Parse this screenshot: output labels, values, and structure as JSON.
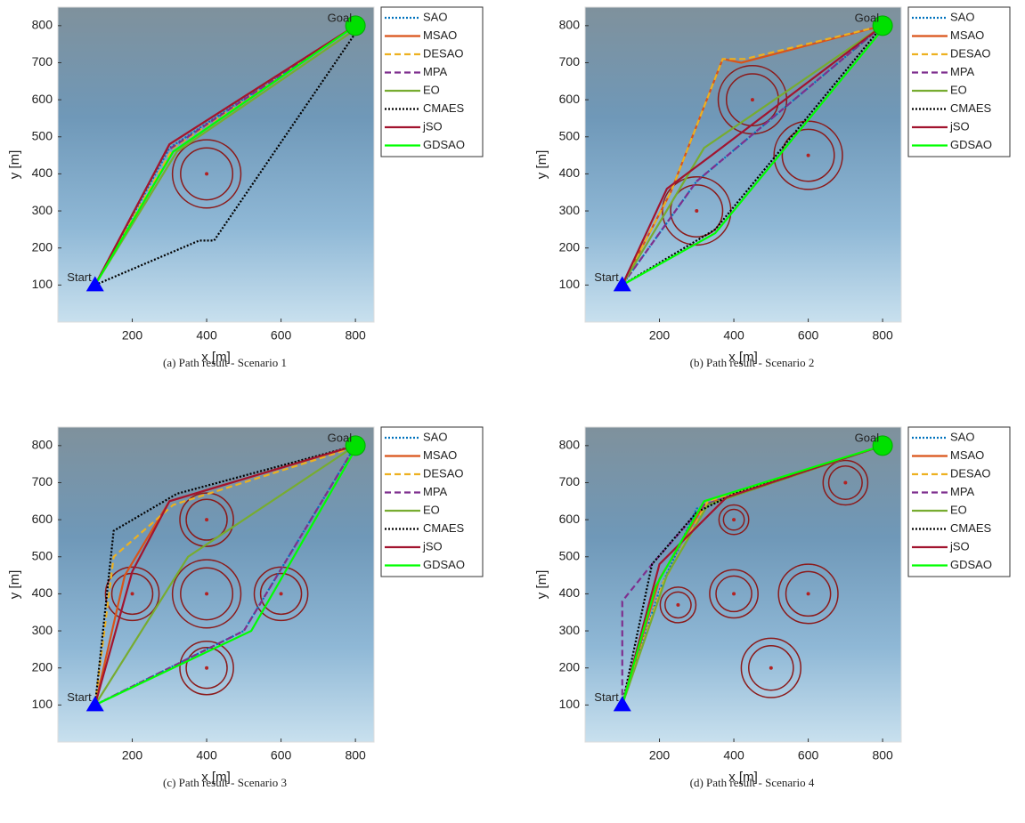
{
  "chart_data": [
    {
      "type": "line",
      "caption": "(a)  Path result - Scenario 1",
      "xlabel": "x [m]",
      "ylabel": "y [m]",
      "xlim": [
        0,
        850
      ],
      "ylim": [
        0,
        850
      ],
      "xticks": [
        200,
        400,
        600,
        800
      ],
      "yticks": [
        100,
        200,
        300,
        400,
        500,
        600,
        700,
        800
      ],
      "start": {
        "label": "Start",
        "x": 100,
        "y": 100
      },
      "goal": {
        "label": "Goal",
        "x": 800,
        "y": 800
      },
      "obstacles": [
        {
          "x": 400,
          "y": 400,
          "radii": [
            70,
            92
          ]
        }
      ],
      "series": [
        {
          "name": "SAO",
          "color": "#0072bd",
          "style": "dotted",
          "x": [
            100,
            300,
            800
          ],
          "y": [
            100,
            470,
            800
          ]
        },
        {
          "name": "MSAO",
          "color": "#d95319",
          "style": "solid",
          "x": [
            100,
            300,
            800
          ],
          "y": [
            100,
            480,
            800
          ]
        },
        {
          "name": "DESAO",
          "color": "#edb120",
          "style": "dashed",
          "x": [
            100,
            310,
            800
          ],
          "y": [
            100,
            470,
            800
          ]
        },
        {
          "name": "MPA",
          "color": "#7e2f8e",
          "style": "dashed",
          "x": [
            100,
            290,
            800
          ],
          "y": [
            100,
            460,
            800
          ]
        },
        {
          "name": "EO",
          "color": "#77ac30",
          "style": "solid",
          "x": [
            100,
            320,
            800
          ],
          "y": [
            100,
            460,
            790
          ]
        },
        {
          "name": "CMAES",
          "color": "#000000",
          "style": "dotted",
          "x": [
            100,
            380,
            420,
            800
          ],
          "y": [
            100,
            220,
            220,
            780
          ]
        },
        {
          "name": "jSO",
          "color": "#a2142f",
          "style": "solid",
          "x": [
            100,
            300,
            800
          ],
          "y": [
            100,
            480,
            800
          ]
        },
        {
          "name": "GDSAO",
          "color": "#00ff00",
          "style": "solid",
          "x": [
            100,
            310,
            800
          ],
          "y": [
            100,
            460,
            800
          ]
        }
      ]
    },
    {
      "type": "line",
      "caption": "(b)  Path result - Scenario 2",
      "xlabel": "x [m]",
      "ylabel": "y [m]",
      "xlim": [
        0,
        850
      ],
      "ylim": [
        0,
        850
      ],
      "xticks": [
        200,
        400,
        600,
        800
      ],
      "yticks": [
        100,
        200,
        300,
        400,
        500,
        600,
        700,
        800
      ],
      "start": {
        "label": "Start",
        "x": 100,
        "y": 100
      },
      "goal": {
        "label": "Goal",
        "x": 800,
        "y": 800
      },
      "obstacles": [
        {
          "x": 450,
          "y": 600,
          "radii": [
            70,
            92
          ]
        },
        {
          "x": 300,
          "y": 300,
          "radii": [
            70,
            92
          ]
        },
        {
          "x": 600,
          "y": 450,
          "radii": [
            70,
            92
          ]
        }
      ],
      "series": [
        {
          "name": "SAO",
          "color": "#0072bd",
          "style": "dotted",
          "x": [
            100,
            300,
            800
          ],
          "y": [
            100,
            380,
            800
          ]
        },
        {
          "name": "MSAO",
          "color": "#d95319",
          "style": "solid",
          "x": [
            100,
            230,
            370,
            420,
            800
          ],
          "y": [
            100,
            350,
            710,
            700,
            800
          ]
        },
        {
          "name": "DESAO",
          "color": "#edb120",
          "style": "dashed",
          "x": [
            100,
            230,
            370,
            430,
            800
          ],
          "y": [
            100,
            350,
            710,
            710,
            800
          ]
        },
        {
          "name": "MPA",
          "color": "#7e2f8e",
          "style": "dashed",
          "x": [
            100,
            300,
            800
          ],
          "y": [
            100,
            380,
            800
          ]
        },
        {
          "name": "EO",
          "color": "#77ac30",
          "style": "solid",
          "x": [
            100,
            320,
            800
          ],
          "y": [
            100,
            470,
            800
          ]
        },
        {
          "name": "CMAES",
          "color": "#000000",
          "style": "dotted",
          "x": [
            100,
            350,
            800
          ],
          "y": [
            100,
            250,
            800
          ]
        },
        {
          "name": "jSO",
          "color": "#a2142f",
          "style": "solid",
          "x": [
            100,
            220,
            340,
            800
          ],
          "y": [
            100,
            360,
            450,
            800
          ]
        },
        {
          "name": "GDSAO",
          "color": "#00ff00",
          "style": "solid",
          "x": [
            100,
            350,
            800
          ],
          "y": [
            100,
            240,
            790
          ]
        }
      ]
    },
    {
      "type": "line",
      "caption": "(c)  Path result - Scenario 3",
      "xlabel": "x [m]",
      "ylabel": "y [m]",
      "xlim": [
        0,
        850
      ],
      "ylim": [
        0,
        850
      ],
      "xticks": [
        200,
        400,
        600,
        800
      ],
      "yticks": [
        100,
        200,
        300,
        400,
        500,
        600,
        700,
        800
      ],
      "start": {
        "label": "Start",
        "x": 100,
        "y": 100
      },
      "goal": {
        "label": "Goal",
        "x": 800,
        "y": 800
      },
      "obstacles": [
        {
          "x": 200,
          "y": 400,
          "radii": [
            55,
            72
          ]
        },
        {
          "x": 400,
          "y": 400,
          "radii": [
            70,
            92
          ]
        },
        {
          "x": 600,
          "y": 400,
          "radii": [
            55,
            72
          ]
        },
        {
          "x": 400,
          "y": 600,
          "radii": [
            55,
            72
          ]
        },
        {
          "x": 400,
          "y": 200,
          "radii": [
            55,
            72
          ]
        }
      ],
      "series": [
        {
          "name": "SAO",
          "color": "#0072bd",
          "style": "dotted",
          "x": [
            100,
            500,
            800
          ],
          "y": [
            100,
            300,
            800
          ]
        },
        {
          "name": "MSAO",
          "color": "#d95319",
          "style": "solid",
          "x": [
            100,
            180,
            300,
            800
          ],
          "y": [
            100,
            450,
            650,
            800
          ]
        },
        {
          "name": "DESAO",
          "color": "#edb120",
          "style": "dashed",
          "x": [
            100,
            150,
            310,
            750,
            800
          ],
          "y": [
            100,
            500,
            640,
            780,
            800
          ]
        },
        {
          "name": "MPA",
          "color": "#7e2f8e",
          "style": "dashed",
          "x": [
            100,
            500,
            800
          ],
          "y": [
            100,
            300,
            800
          ]
        },
        {
          "name": "EO",
          "color": "#77ac30",
          "style": "solid",
          "x": [
            100,
            350,
            800
          ],
          "y": [
            100,
            500,
            800
          ]
        },
        {
          "name": "CMAES",
          "color": "#000000",
          "style": "dotted",
          "x": [
            100,
            150,
            320,
            800
          ],
          "y": [
            100,
            570,
            670,
            800
          ]
        },
        {
          "name": "jSO",
          "color": "#a2142f",
          "style": "solid",
          "x": [
            100,
            200,
            300,
            800
          ],
          "y": [
            100,
            460,
            650,
            800
          ]
        },
        {
          "name": "GDSAO",
          "color": "#00ff00",
          "style": "solid",
          "x": [
            100,
            520,
            800
          ],
          "y": [
            100,
            300,
            790
          ]
        }
      ]
    },
    {
      "type": "line",
      "caption": "(d)  Path result - Scenario 4",
      "xlabel": "x [m]",
      "ylabel": "y [m]",
      "xlim": [
        0,
        850
      ],
      "ylim": [
        0,
        850
      ],
      "xticks": [
        200,
        400,
        600,
        800
      ],
      "yticks": [
        100,
        200,
        300,
        400,
        500,
        600,
        700,
        800
      ],
      "start": {
        "label": "Start",
        "x": 100,
        "y": 100
      },
      "goal": {
        "label": "Goal",
        "x": 800,
        "y": 800
      },
      "obstacles": [
        {
          "x": 250,
          "y": 370,
          "radii": [
            35,
            48
          ]
        },
        {
          "x": 400,
          "y": 400,
          "radii": [
            48,
            65
          ]
        },
        {
          "x": 600,
          "y": 400,
          "radii": [
            60,
            80
          ]
        },
        {
          "x": 500,
          "y": 200,
          "radii": [
            60,
            80
          ]
        },
        {
          "x": 400,
          "y": 600,
          "radii": [
            28,
            40
          ]
        },
        {
          "x": 700,
          "y": 700,
          "radii": [
            45,
            60
          ]
        }
      ],
      "series": [
        {
          "name": "SAO",
          "color": "#0072bd",
          "style": "dotted",
          "x": [
            100,
            200,
            300,
            800
          ],
          "y": [
            100,
            410,
            630,
            800
          ]
        },
        {
          "name": "MSAO",
          "color": "#d95319",
          "style": "solid",
          "x": [
            100,
            200,
            320,
            800
          ],
          "y": [
            100,
            440,
            640,
            800
          ]
        },
        {
          "name": "DESAO",
          "color": "#edb120",
          "style": "dashed",
          "x": [
            100,
            210,
            330,
            800
          ],
          "y": [
            100,
            430,
            650,
            800
          ]
        },
        {
          "name": "MPA",
          "color": "#7e2f8e",
          "style": "dashed",
          "x": [
            100,
            100,
            180,
            320,
            800
          ],
          "y": [
            100,
            380,
            480,
            640,
            800
          ]
        },
        {
          "name": "EO",
          "color": "#77ac30",
          "style": "solid",
          "x": [
            100,
            220,
            330,
            800
          ],
          "y": [
            100,
            450,
            640,
            800
          ]
        },
        {
          "name": "CMAES",
          "color": "#000000",
          "style": "dotted",
          "x": [
            100,
            180,
            300,
            400,
            800
          ],
          "y": [
            100,
            480,
            620,
            670,
            800
          ]
        },
        {
          "name": "jSO",
          "color": "#a2142f",
          "style": "solid",
          "x": [
            100,
            200,
            380,
            800
          ],
          "y": [
            100,
            480,
            660,
            800
          ]
        },
        {
          "name": "GDSAO",
          "color": "#00ff00",
          "style": "solid",
          "x": [
            100,
            190,
            320,
            800
          ],
          "y": [
            100,
            420,
            650,
            800
          ]
        }
      ]
    }
  ]
}
